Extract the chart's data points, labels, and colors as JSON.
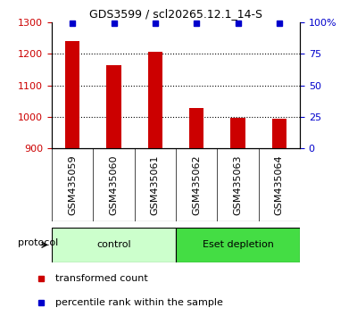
{
  "title": "GDS3599 / scl20265.12.1_14-S",
  "categories": [
    "GSM435059",
    "GSM435060",
    "GSM435061",
    "GSM435062",
    "GSM435063",
    "GSM435064"
  ],
  "bar_values": [
    1240,
    1165,
    1205,
    1028,
    997,
    995
  ],
  "percentile_values": [
    99,
    99,
    99,
    99,
    99,
    99
  ],
  "bar_color": "#cc0000",
  "dot_color": "#0000cc",
  "ylim_left": [
    900,
    1300
  ],
  "ylim_right": [
    0,
    100
  ],
  "yticks_left": [
    900,
    1000,
    1100,
    1200,
    1300
  ],
  "yticks_right": [
    0,
    25,
    50,
    75,
    100
  ],
  "ytick_labels_right": [
    "0",
    "25",
    "50",
    "75",
    "100%"
  ],
  "grid_values": [
    1000,
    1100,
    1200
  ],
  "group_labels": [
    "control",
    "Eset depletion"
  ],
  "group_ranges": [
    [
      0,
      3
    ],
    [
      3,
      6
    ]
  ],
  "group_colors_light": [
    "#ccffcc",
    "#44dd44"
  ],
  "group_colors_dark": [
    "#44cc44",
    "#00bb00"
  ],
  "protocol_label": "protocol",
  "legend_bar_label": "transformed count",
  "legend_dot_label": "percentile rank within the sample",
  "tick_color_left": "#cc0000",
  "tick_color_right": "#0000cc",
  "xaxis_bg": "#cccccc",
  "bar_width": 0.35,
  "title_fontsize": 9,
  "tick_fontsize": 8,
  "label_fontsize": 8
}
